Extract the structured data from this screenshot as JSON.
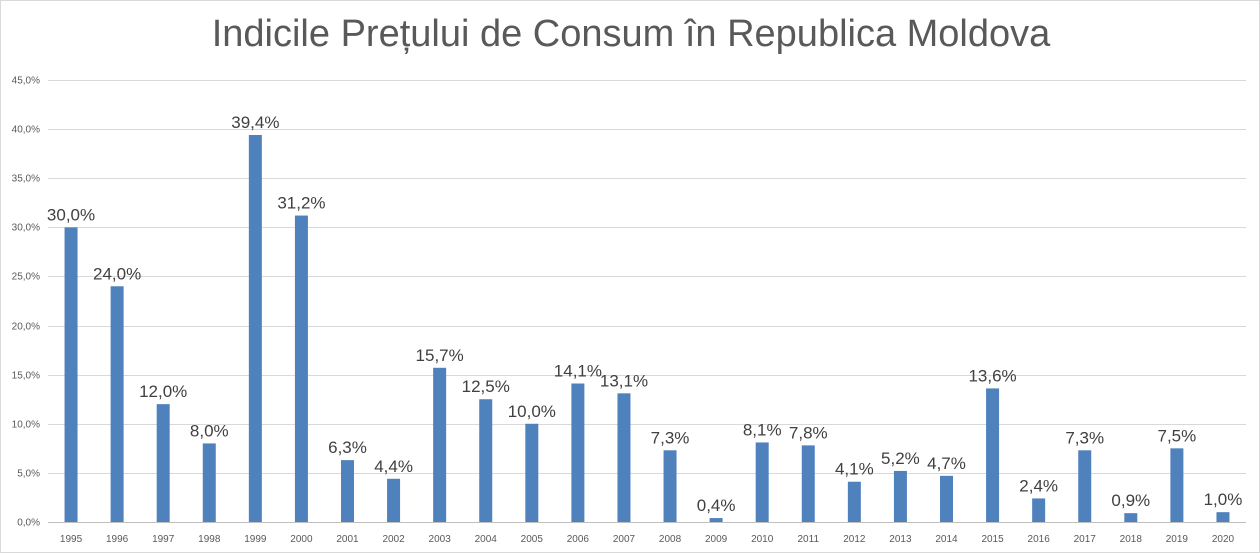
{
  "chart_data": {
    "type": "bar",
    "title": "Indicile Prețului de Consum în Republica Moldova",
    "xlabel": "",
    "ylabel": "",
    "ylim": [
      0,
      45
    ],
    "y_ticks": [
      0,
      5,
      10,
      15,
      20,
      25,
      30,
      35,
      40,
      45
    ],
    "y_tick_labels": [
      "0,0%",
      "5,0%",
      "10,0%",
      "15,0%",
      "20,0%",
      "25,0%",
      "30,0%",
      "35,0%",
      "40,0%",
      "45,0%"
    ],
    "grid": true,
    "legend": "none",
    "bar_color": "#4f81bd",
    "categories": [
      "1995",
      "1996",
      "1997",
      "1998",
      "1999",
      "2000",
      "2001",
      "2002",
      "2003",
      "2004",
      "2005",
      "2006",
      "2007",
      "2008",
      "2009",
      "2010",
      "2011",
      "2012",
      "2013",
      "2014",
      "2015",
      "2016",
      "2017",
      "2018",
      "2019",
      "2020"
    ],
    "values": [
      30.0,
      24.0,
      12.0,
      8.0,
      39.4,
      31.2,
      6.3,
      4.4,
      15.7,
      12.5,
      10.0,
      14.1,
      13.1,
      7.3,
      0.4,
      8.1,
      7.8,
      4.1,
      5.2,
      4.7,
      13.6,
      2.4,
      7.3,
      0.9,
      7.5,
      1.0
    ],
    "data_labels": [
      "30,0%",
      "24,0%",
      "12,0%",
      "8,0%",
      "39,4%",
      "31,2%",
      "6,3%",
      "4,4%",
      "15,7%",
      "12,5%",
      "10,0%",
      "14,1%",
      "13,1%",
      "7,3%",
      "0,4%",
      "8,1%",
      "7,8%",
      "4,1%",
      "5,2%",
      "4,7%",
      "13,6%",
      "2,4%",
      "7,3%",
      "0,9%",
      "7,5%",
      "1,0%"
    ]
  }
}
